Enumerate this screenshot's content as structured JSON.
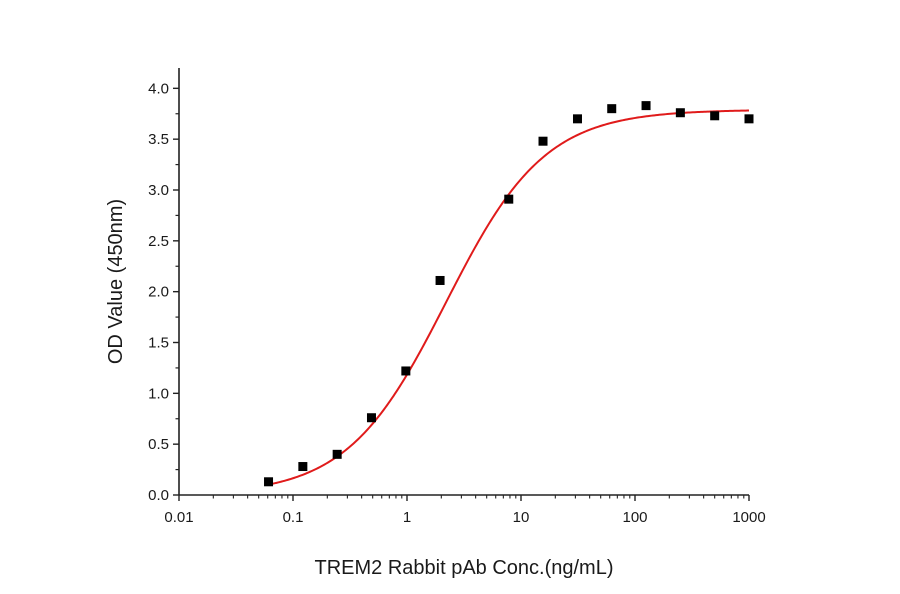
{
  "chart_data": {
    "type": "scatter",
    "title": "",
    "xlabel": "TREM2 Rabbit pAb Conc.(ng/mL)",
    "ylabel": "OD Value (450nm)",
    "x_scale": "log",
    "xlim": [
      0.01,
      1000
    ],
    "ylim": [
      0,
      4.2
    ],
    "x_ticks": [
      0.01,
      0.1,
      1,
      10,
      100,
      1000
    ],
    "x_tick_labels": [
      "0.01",
      "0.1",
      "1",
      "10",
      "100",
      "1000"
    ],
    "y_ticks": [
      0,
      0.5,
      1,
      1.5,
      2,
      2.5,
      3,
      3.5,
      4
    ],
    "y_tick_labels": [
      "0.0",
      "0.5",
      "1.0",
      "1.5",
      "2.0",
      "2.5",
      "3.0",
      "3.5",
      "4.0"
    ],
    "grid": false,
    "series": [
      {
        "marker": "square",
        "color": "#000000",
        "x": [
          0.061,
          0.122,
          0.244,
          0.488,
          0.977,
          1.95,
          7.81,
          15.6,
          31.3,
          62.5,
          125,
          250,
          500,
          1000
        ],
        "y": [
          0.13,
          0.28,
          0.4,
          0.76,
          1.22,
          2.11,
          2.91,
          3.48,
          3.7,
          3.8,
          3.83,
          3.76,
          3.73,
          3.7
        ]
      },
      {
        "type": "line",
        "color": "#e01b1b",
        "fit": "4PL",
        "bottom": 0.0,
        "top": 3.79,
        "ec50": 2.2,
        "hill": 1.0
      }
    ]
  }
}
